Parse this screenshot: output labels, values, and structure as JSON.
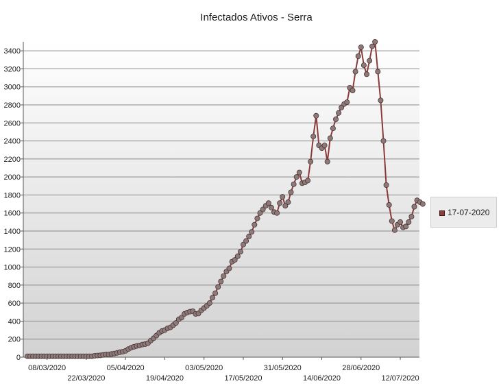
{
  "chart_data": {
    "type": "line",
    "title": "Infectados Ativos - Serra",
    "xlabel": "",
    "ylabel": "",
    "ylim": [
      0,
      3500
    ],
    "y_ticks": [
      0,
      200,
      400,
      600,
      800,
      1000,
      1200,
      1400,
      1600,
      1800,
      2000,
      2200,
      2400,
      2600,
      2800,
      3000,
      3200,
      3400
    ],
    "x_start": "2020-03-01",
    "x_end": "2020-07-17",
    "x_ticks": [
      "08/03/2020",
      "22/03/2020",
      "05/04/2020",
      "19/04/2020",
      "03/05/2020",
      "17/05/2020",
      "31/05/2020",
      "14/06/2020",
      "28/06/2020",
      "12/07/2020"
    ],
    "grid": true,
    "legend_position": "right",
    "series": [
      {
        "name": "17-07-2020",
        "color": "#8b3a3a",
        "marker_color": "#8c7a7a",
        "points": [
          [
            "2020-03-01",
            10
          ],
          [
            "2020-03-02",
            10
          ],
          [
            "2020-03-03",
            10
          ],
          [
            "2020-03-04",
            10
          ],
          [
            "2020-03-05",
            10
          ],
          [
            "2020-03-06",
            10
          ],
          [
            "2020-03-07",
            10
          ],
          [
            "2020-03-08",
            10
          ],
          [
            "2020-03-09",
            10
          ],
          [
            "2020-03-10",
            10
          ],
          [
            "2020-03-11",
            10
          ],
          [
            "2020-03-12",
            10
          ],
          [
            "2020-03-13",
            10
          ],
          [
            "2020-03-14",
            10
          ],
          [
            "2020-03-15",
            10
          ],
          [
            "2020-03-16",
            10
          ],
          [
            "2020-03-17",
            10
          ],
          [
            "2020-03-18",
            10
          ],
          [
            "2020-03-19",
            10
          ],
          [
            "2020-03-20",
            10
          ],
          [
            "2020-03-21",
            10
          ],
          [
            "2020-03-22",
            10
          ],
          [
            "2020-03-23",
            10
          ],
          [
            "2020-03-24",
            10
          ],
          [
            "2020-03-25",
            15
          ],
          [
            "2020-03-26",
            18
          ],
          [
            "2020-03-27",
            20
          ],
          [
            "2020-03-28",
            25
          ],
          [
            "2020-03-29",
            28
          ],
          [
            "2020-03-30",
            30
          ],
          [
            "2020-03-31",
            35
          ],
          [
            "2020-04-01",
            40
          ],
          [
            "2020-04-02",
            48
          ],
          [
            "2020-04-03",
            55
          ],
          [
            "2020-04-04",
            60
          ],
          [
            "2020-04-05",
            70
          ],
          [
            "2020-04-06",
            90
          ],
          [
            "2020-04-07",
            105
          ],
          [
            "2020-04-08",
            115
          ],
          [
            "2020-04-09",
            125
          ],
          [
            "2020-04-10",
            130
          ],
          [
            "2020-04-11",
            140
          ],
          [
            "2020-04-12",
            145
          ],
          [
            "2020-04-13",
            155
          ],
          [
            "2020-04-14",
            185
          ],
          [
            "2020-04-15",
            210
          ],
          [
            "2020-04-16",
            240
          ],
          [
            "2020-04-17",
            270
          ],
          [
            "2020-04-18",
            290
          ],
          [
            "2020-04-19",
            300
          ],
          [
            "2020-04-20",
            320
          ],
          [
            "2020-04-21",
            330
          ],
          [
            "2020-04-22",
            355
          ],
          [
            "2020-04-23",
            380
          ],
          [
            "2020-04-24",
            420
          ],
          [
            "2020-04-25",
            440
          ],
          [
            "2020-04-26",
            480
          ],
          [
            "2020-04-27",
            495
          ],
          [
            "2020-04-28",
            505
          ],
          [
            "2020-04-29",
            510
          ],
          [
            "2020-04-30",
            480
          ],
          [
            "2020-05-01",
            485
          ],
          [
            "2020-05-02",
            520
          ],
          [
            "2020-05-03",
            545
          ],
          [
            "2020-05-04",
            570
          ],
          [
            "2020-05-05",
            600
          ],
          [
            "2020-05-06",
            660
          ],
          [
            "2020-05-07",
            710
          ],
          [
            "2020-05-08",
            780
          ],
          [
            "2020-05-09",
            840
          ],
          [
            "2020-05-10",
            900
          ],
          [
            "2020-05-11",
            950
          ],
          [
            "2020-05-12",
            985
          ],
          [
            "2020-05-13",
            1060
          ],
          [
            "2020-05-14",
            1080
          ],
          [
            "2020-05-15",
            1120
          ],
          [
            "2020-05-16",
            1170
          ],
          [
            "2020-05-17",
            1250
          ],
          [
            "2020-05-18",
            1290
          ],
          [
            "2020-05-19",
            1340
          ],
          [
            "2020-05-20",
            1390
          ],
          [
            "2020-05-21",
            1470
          ],
          [
            "2020-05-22",
            1540
          ],
          [
            "2020-05-23",
            1600
          ],
          [
            "2020-05-24",
            1640
          ],
          [
            "2020-05-25",
            1680
          ],
          [
            "2020-05-26",
            1710
          ],
          [
            "2020-05-27",
            1660
          ],
          [
            "2020-05-28",
            1610
          ],
          [
            "2020-05-29",
            1600
          ],
          [
            "2020-05-30",
            1710
          ],
          [
            "2020-05-31",
            1780
          ],
          [
            "2020-06-01",
            1680
          ],
          [
            "2020-06-02",
            1720
          ],
          [
            "2020-06-03",
            1830
          ],
          [
            "2020-06-04",
            1920
          ],
          [
            "2020-06-05",
            2000
          ],
          [
            "2020-06-06",
            2050
          ],
          [
            "2020-06-07",
            1930
          ],
          [
            "2020-06-08",
            1940
          ],
          [
            "2020-06-09",
            1960
          ],
          [
            "2020-06-10",
            2170
          ],
          [
            "2020-06-11",
            2450
          ],
          [
            "2020-06-12",
            2680
          ],
          [
            "2020-06-13",
            2350
          ],
          [
            "2020-06-14",
            2320
          ],
          [
            "2020-06-15",
            2350
          ],
          [
            "2020-06-16",
            2170
          ],
          [
            "2020-06-17",
            2430
          ],
          [
            "2020-06-18",
            2540
          ],
          [
            "2020-06-19",
            2640
          ],
          [
            "2020-06-20",
            2710
          ],
          [
            "2020-06-21",
            2770
          ],
          [
            "2020-06-22",
            2810
          ],
          [
            "2020-06-23",
            2830
          ],
          [
            "2020-06-24",
            2990
          ],
          [
            "2020-06-25",
            2960
          ],
          [
            "2020-06-26",
            3170
          ],
          [
            "2020-06-27",
            3340
          ],
          [
            "2020-06-28",
            3440
          ],
          [
            "2020-06-29",
            3240
          ],
          [
            "2020-06-30",
            3140
          ],
          [
            "2020-07-01",
            3290
          ],
          [
            "2020-07-02",
            3450
          ],
          [
            "2020-07-03",
            3500
          ],
          [
            "2020-07-04",
            3170
          ],
          [
            "2020-07-05",
            2850
          ],
          [
            "2020-07-06",
            2400
          ],
          [
            "2020-07-07",
            1910
          ],
          [
            "2020-07-08",
            1690
          ],
          [
            "2020-07-09",
            1510
          ],
          [
            "2020-07-10",
            1410
          ],
          [
            "2020-07-11",
            1470
          ],
          [
            "2020-07-12",
            1500
          ],
          [
            "2020-07-13",
            1440
          ],
          [
            "2020-07-14",
            1450
          ],
          [
            "2020-07-15",
            1500
          ],
          [
            "2020-07-16",
            1560
          ],
          [
            "2020-07-17",
            1670
          ],
          [
            "2020-07-18",
            1740
          ],
          [
            "2020-07-19",
            1720
          ],
          [
            "2020-07-20",
            1700
          ]
        ]
      }
    ]
  }
}
